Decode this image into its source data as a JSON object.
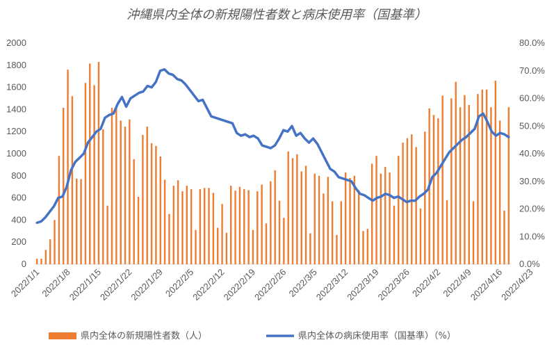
{
  "chart_data": {
    "type": "bar+line",
    "title": "沖縄県内全体の新規陽性者数と病床使用率（国基準）",
    "xlabel": "",
    "ylabel_left": "",
    "ylabel_right": "",
    "ylim_left": [
      0,
      2000
    ],
    "yticks_left": [
      "0",
      "200",
      "400",
      "600",
      "800",
      "1000",
      "1200",
      "1400",
      "1600",
      "1800",
      "2000"
    ],
    "ylim_right": [
      0,
      80
    ],
    "yticks_right": [
      "0.0%",
      "10.0%",
      "20.0%",
      "30.0%",
      "40.0%",
      "50.0%",
      "60.0%",
      "70.0%",
      "80.0%"
    ],
    "x_tick_labels": [
      "2022/1/1",
      "2022/1/8",
      "2022/1/15",
      "2022/1/22",
      "2022/1/29",
      "2022/2/5",
      "2022/2/12",
      "2022/2/19",
      "2022/2/26",
      "2022/3/5",
      "2022/3/12",
      "2022/3/19",
      "2022/3/26",
      "2022/4/2",
      "2022/4/9",
      "2022/4/16",
      "2022/4/23"
    ],
    "start_date": "2022/1/1",
    "grid": false,
    "legend_position": "bottom",
    "colors": {
      "bar": "#ED7D31",
      "line": "#4472C4",
      "text": "#595959"
    },
    "series": [
      {
        "name": "県内全体の新規陽性者数（人）",
        "type": "bar",
        "axis": "left",
        "values": [
          50,
          50,
          130,
          225,
          400,
          980,
          1415,
          1760,
          1520,
          775,
          770,
          1640,
          1815,
          1620,
          1830,
          1220,
          530,
          1415,
          1425,
          1300,
          1245,
          1310,
          950,
          610,
          1170,
          1245,
          1095,
          1070,
          975,
          765,
          455,
          710,
          760,
          660,
          710,
          680,
          310,
          680,
          690,
          690,
          645,
          330,
          545,
          285,
          710,
          665,
          700,
          680,
          670,
          310,
          660,
          720,
          370,
          750,
          850,
          575,
          420,
          1020,
          960,
          995,
          840,
          890,
          280,
          820,
          800,
          640,
          790,
          570,
          265,
          570,
          830,
          780,
          800,
          670,
          300,
          320,
          910,
          980,
          820,
          880,
          830,
          530,
          980,
          1100,
          1140,
          1175,
          1060,
          505,
          1200,
          1410,
          1350,
          1320,
          1525,
          580,
          1500,
          1650,
          1420,
          1530,
          1440,
          570,
          1540,
          1580,
          1580,
          1420,
          1660,
          1300,
          485,
          1420
        ]
      },
      {
        "name": "県内全体の病床使用率（国基準）（%）",
        "type": "line",
        "axis": "right",
        "values": [
          15.0,
          15.5,
          17.0,
          19.0,
          21.0,
          24.0,
          24.5,
          28.0,
          34.0,
          37.0,
          38.5,
          40.0,
          44.0,
          46.0,
          48.0,
          49.0,
          53.0,
          54.0,
          54.5,
          58.0,
          60.5,
          57.0,
          60.0,
          61.0,
          62.0,
          62.5,
          64.5,
          64.0,
          66.0,
          70.0,
          70.5,
          69.0,
          68.5,
          67.0,
          66.5,
          65.0,
          63.0,
          61.0,
          59.0,
          59.5,
          56.5,
          53.5,
          53.0,
          52.5,
          52.0,
          51.5,
          51.0,
          47.5,
          46.5,
          47.0,
          46.0,
          46.5,
          45.5,
          43.0,
          42.5,
          42.0,
          43.0,
          45.5,
          48.5,
          48.0,
          50.0,
          46.5,
          47.5,
          45.5,
          44.0,
          45.5,
          43.5,
          40.5,
          37.5,
          34.5,
          33.5,
          31.5,
          31.0,
          30.5,
          30.0,
          27.5,
          25.5,
          25.0,
          24.0,
          23.0,
          24.0,
          24.5,
          25.5,
          25.0,
          24.0,
          24.5,
          23.5,
          22.5,
          23.0,
          23.0,
          24.5,
          25.5,
          27.0,
          31.5,
          33.0,
          35.5,
          38.0,
          40.5,
          42.0,
          43.5,
          45.0,
          46.0,
          47.5,
          49.0,
          53.5,
          54.5,
          51.5,
          48.0,
          46.5,
          47.5,
          47.0,
          46.0
        ]
      }
    ]
  }
}
